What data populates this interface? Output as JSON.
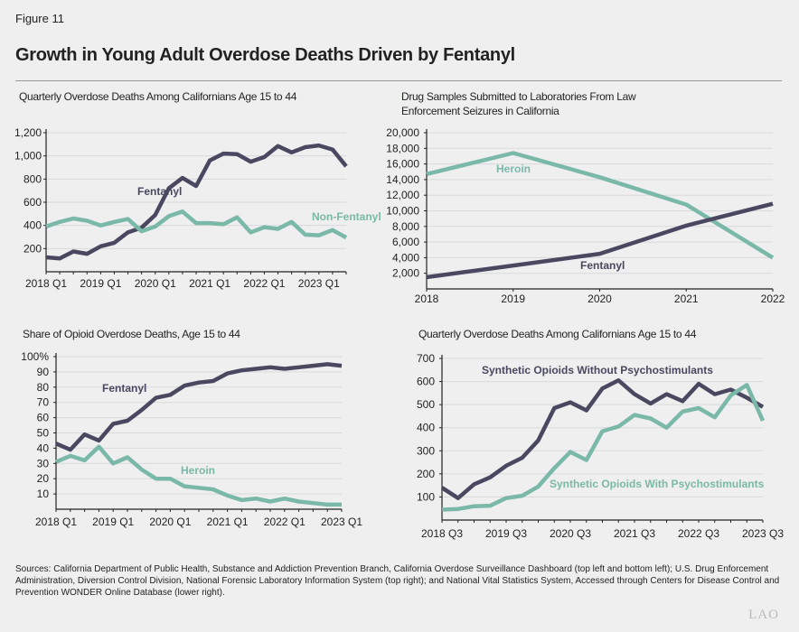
{
  "figure_label": "Figure 11",
  "title": "Growth in Young Adult Overdose Deaths Driven by Fentanyl",
  "colors": {
    "dark": "#4a4860",
    "teal": "#7ab8a8",
    "grid": "#d9dadb",
    "background": "#eeefee"
  },
  "chart_data": [
    {
      "type": "line",
      "title": "Quarterly Overdose Deaths Among Californians Age 15 to 44",
      "x": [
        "2018 Q1",
        "2018 Q2",
        "2018 Q3",
        "2018 Q4",
        "2019 Q1",
        "2019 Q2",
        "2019 Q3",
        "2019 Q4",
        "2020 Q1",
        "2020 Q2",
        "2020 Q3",
        "2020 Q4",
        "2021 Q1",
        "2021 Q2",
        "2021 Q3",
        "2021 Q4",
        "2022 Q1",
        "2022 Q2",
        "2022 Q3",
        "2022 Q4",
        "2023 Q1",
        "2023 Q2",
        "2023 Q3"
      ],
      "x_tick_labels": [
        "2018 Q1",
        "2019 Q1",
        "2020 Q1",
        "2021 Q1",
        "2022 Q1",
        "2023 Q1"
      ],
      "y_ticks": [
        200,
        400,
        600,
        800,
        1000,
        1200
      ],
      "y_tick_labels": [
        "200",
        "400",
        "600",
        "800",
        "1,000",
        "1,200"
      ],
      "ylim": [
        0,
        1200
      ],
      "grid": true,
      "series": [
        {
          "name": "Fentanyl",
          "color": "#4a4860",
          "values": [
            125,
            115,
            175,
            155,
            220,
            250,
            340,
            380,
            490,
            720,
            810,
            740,
            960,
            1020,
            1015,
            950,
            990,
            1085,
            1030,
            1075,
            1090,
            1055,
            910
          ]
        },
        {
          "name": "Non-Fentanyl",
          "color": "#7ab8a8",
          "values": [
            390,
            430,
            460,
            440,
            400,
            430,
            455,
            350,
            390,
            480,
            520,
            420,
            420,
            410,
            470,
            340,
            385,
            370,
            430,
            320,
            315,
            360,
            295
          ]
        }
      ]
    },
    {
      "type": "line",
      "title": "Drug Samples Submitted to Laboratories From Law Enforcement Seizures in California",
      "x": [
        "2018",
        "2019",
        "2020",
        "2021",
        "2022"
      ],
      "x_tick_labels": [
        "2018",
        "2019",
        "2020",
        "2021",
        "2022"
      ],
      "y_ticks": [
        2000,
        4000,
        6000,
        8000,
        10000,
        12000,
        14000,
        16000,
        18000,
        20000
      ],
      "y_tick_labels": [
        "2,000",
        "4,000",
        "6,000",
        "8,000",
        "10,000",
        "12,000",
        "14,000",
        "16,000",
        "18,000",
        "20,000"
      ],
      "ylim": [
        0,
        20000
      ],
      "grid": true,
      "series": [
        {
          "name": "Heroin",
          "color": "#7ab8a8",
          "values": [
            14700,
            17400,
            14300,
            10800,
            4000
          ]
        },
        {
          "name": "Fentanyl",
          "color": "#4a4860",
          "values": [
            1500,
            3000,
            4500,
            8100,
            10900
          ]
        }
      ]
    },
    {
      "type": "line",
      "title": "Share of Opioid Overdose Deaths, Age 15 to 44",
      "x": [
        "2018 Q1",
        "2018 Q2",
        "2018 Q3",
        "2018 Q4",
        "2019 Q1",
        "2019 Q2",
        "2019 Q3",
        "2019 Q4",
        "2020 Q1",
        "2020 Q2",
        "2020 Q3",
        "2020 Q4",
        "2021 Q1",
        "2021 Q2",
        "2021 Q3",
        "2021 Q4",
        "2022 Q1",
        "2022 Q2",
        "2022 Q3",
        "2022 Q4",
        "2023 Q1"
      ],
      "x_tick_labels": [
        "2018 Q1",
        "2019 Q1",
        "2020 Q1",
        "2021 Q1",
        "2022 Q1",
        "2023 Q1"
      ],
      "y_ticks": [
        10,
        20,
        30,
        40,
        50,
        60,
        70,
        80,
        90,
        100
      ],
      "y_tick_labels": [
        "10",
        "20",
        "30",
        "40",
        "50",
        "60",
        "70",
        "80",
        "90",
        "100%"
      ],
      "ylim": [
        0,
        100
      ],
      "grid": true,
      "series": [
        {
          "name": "Fentanyl",
          "color": "#4a4860",
          "values": [
            43,
            39,
            49,
            45,
            56,
            58,
            65,
            73,
            75,
            81,
            83,
            84,
            89,
            91,
            92,
            93,
            92,
            93,
            94,
            95,
            94
          ]
        },
        {
          "name": "Heroin",
          "color": "#7ab8a8",
          "values": [
            31,
            35,
            32,
            41,
            30,
            34,
            26,
            20,
            20,
            15,
            14,
            13,
            9,
            6,
            7,
            5,
            7,
            5,
            4,
            3,
            3
          ]
        }
      ]
    },
    {
      "type": "line",
      "title": "Quarterly Overdose Deaths Among Californians Age 15 to 44",
      "x": [
        "2018 Q3",
        "2018 Q4",
        "2019 Q1",
        "2019 Q2",
        "2019 Q3",
        "2019 Q4",
        "2020 Q1",
        "2020 Q2",
        "2020 Q3",
        "2020 Q4",
        "2021 Q1",
        "2021 Q2",
        "2021 Q3",
        "2021 Q4",
        "2022 Q1",
        "2022 Q2",
        "2022 Q3",
        "2022 Q4",
        "2023 Q1",
        "2023 Q2",
        "2023 Q3"
      ],
      "x_tick_labels": [
        "2018 Q3",
        "2019 Q3",
        "2020 Q3",
        "2021 Q3",
        "2022 Q3",
        "2023 Q3"
      ],
      "y_ticks": [
        100,
        200,
        300,
        400,
        500,
        600,
        700
      ],
      "y_tick_labels": [
        "100",
        "200",
        "300",
        "400",
        "500",
        "600",
        "700"
      ],
      "ylim": [
        0,
        700
      ],
      "grid": true,
      "series": [
        {
          "name": "Synthetic Opioids Without Psychostimulants",
          "color": "#4a4860",
          "values": [
            140,
            95,
            155,
            185,
            235,
            270,
            345,
            485,
            510,
            475,
            570,
            605,
            545,
            505,
            545,
            515,
            590,
            545,
            565,
            530,
            490
          ]
        },
        {
          "name": "Synthetic Opioids With Psychostimulants",
          "color": "#7ab8a8",
          "values": [
            45,
            48,
            60,
            62,
            95,
            105,
            145,
            225,
            295,
            260,
            385,
            405,
            455,
            440,
            400,
            470,
            485,
            445,
            540,
            585,
            430
          ]
        }
      ]
    }
  ],
  "sources": "Sources: California Department of Public Health, Substance and Addiction Prevention Branch, California Overdose Surveillance Dashboard (top left and bottom left); U.S. Drug Enforcement Administration, Diversion Control Division, National Forensic Laboratory Information System (top right); and National Vital Statistics System, Accessed through Centers for Disease Control and Prevention WONDER Online Database (lower right).",
  "logo": "LAO"
}
